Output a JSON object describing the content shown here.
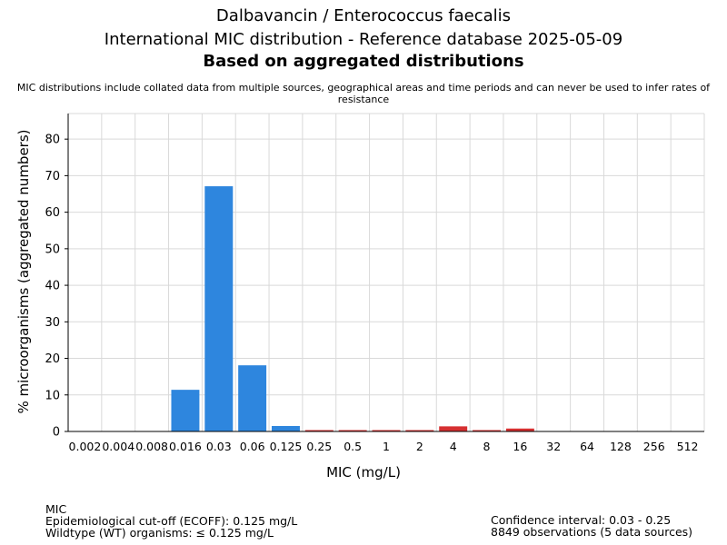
{
  "header": {
    "title_line1": "Dalbavancin / Enterococcus faecalis",
    "title_line2": "International MIC distribution - Reference database 2025-05-09",
    "title_line3": "Based on aggregated distributions",
    "note": "MIC distributions include collated data from multiple sources, geographical areas and time periods and can never be used to infer rates of resistance"
  },
  "footer": {
    "left_line1": "MIC",
    "left_line2": "Epidemiological cut-off (ECOFF): 0.125 mg/L",
    "left_line3": "Wildtype (WT) organisms: ≤ 0.125 mg/L",
    "right_line1": "Confidence interval: 0.03 - 0.25",
    "right_line2": "8849 observations (5 data sources)"
  },
  "colors": {
    "wildtype": "#2e86de",
    "non_wildtype": "#d63031",
    "grid": "#d9d9d9"
  },
  "chart_data": {
    "type": "bar",
    "xlabel": "MIC (mg/L)",
    "ylabel": "% microorganisms (aggregated numbers)",
    "categories": [
      "0.002",
      "0.004",
      "0.008",
      "0.016",
      "0.03",
      "0.06",
      "0.125",
      "0.25",
      "0.5",
      "1",
      "2",
      "4",
      "8",
      "16",
      "32",
      "64",
      "128",
      "256",
      "512"
    ],
    "values": [
      0,
      0,
      0,
      11.4,
      67.1,
      18.1,
      1.5,
      0.2,
      0.2,
      0.2,
      0.2,
      1.4,
      0.2,
      0.8,
      0,
      0,
      0,
      0,
      0
    ],
    "wildtype": [
      true,
      true,
      true,
      true,
      true,
      true,
      true,
      false,
      false,
      false,
      false,
      false,
      false,
      false,
      false,
      false,
      false,
      false,
      false
    ],
    "ylim": [
      0,
      87
    ],
    "yticks": [
      0,
      10,
      20,
      30,
      40,
      50,
      60,
      70,
      80
    ],
    "grid": true,
    "legend": "none"
  }
}
